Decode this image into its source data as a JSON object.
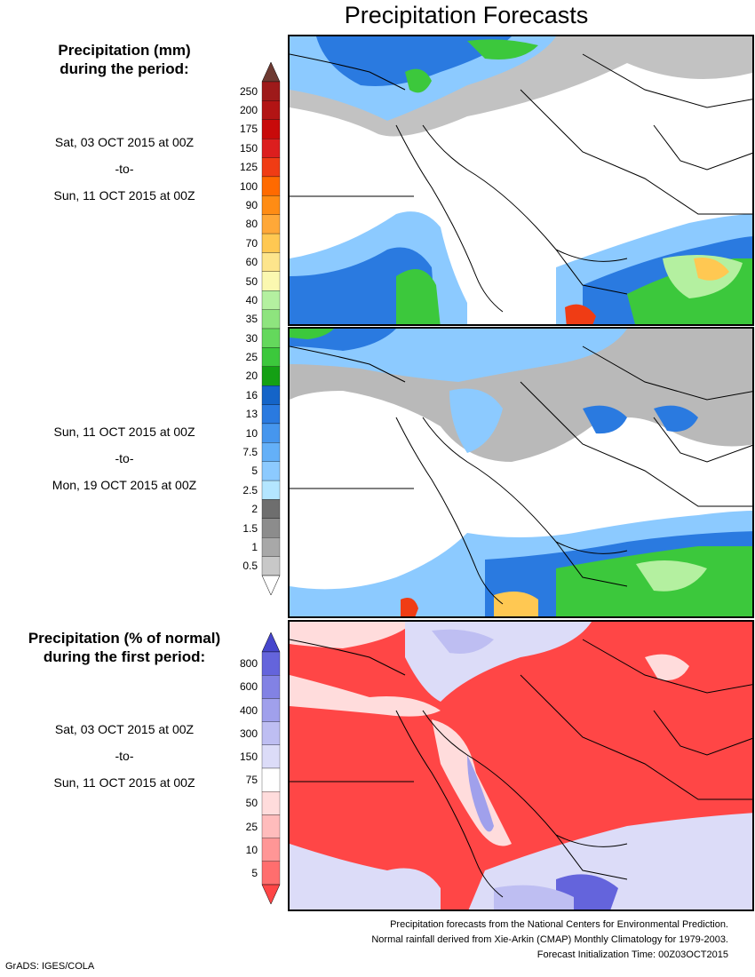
{
  "title": "Precipitation Forecasts",
  "mm_heading": [
    "Precipitation (mm)",
    "during the period:"
  ],
  "pct_heading": [
    "Precipitation (% of normal)",
    "during the first period:"
  ],
  "period1": {
    "start": "Sat, 03 OCT 2015 at 00Z",
    "sep": "-to-",
    "end": "Sun, 11 OCT 2015 at 00Z"
  },
  "period2": {
    "start": "Sun, 11 OCT 2015 at 00Z",
    "sep": "-to-",
    "end": "Mon, 19 OCT 2015 at 00Z"
  },
  "period3": {
    "start": "Sat, 03 OCT 2015 at 00Z",
    "sep": "-to-",
    "end": "Sun, 11 OCT 2015 at 00Z"
  },
  "mm_legend": {
    "labels": [
      "250",
      "200",
      "175",
      "150",
      "125",
      "100",
      "90",
      "80",
      "70",
      "60",
      "50",
      "40",
      "35",
      "30",
      "25",
      "20",
      "16",
      "13",
      "10",
      "7.5",
      "5",
      "2.5",
      "2",
      "1.5",
      "1",
      "0.5"
    ],
    "colors": [
      "#9e1a1a",
      "#b21414",
      "#c80a0a",
      "#dc1e1e",
      "#f03c14",
      "#ff6a00",
      "#ff8c14",
      "#ffa838",
      "#ffc852",
      "#fde58c",
      "#fbf8b0",
      "#b4f0a0",
      "#8ee47e",
      "#64d85c",
      "#3cc83c",
      "#14a014",
      "#1464c8",
      "#2a7ae0",
      "#4696ee",
      "#64b0f8",
      "#8ccaff",
      "#b4e6ff",
      "#6e6e6e",
      "#8c8c8c",
      "#a8a8a8",
      "#c8c8c8"
    ],
    "top_color": "#6e3a32"
  },
  "pct_legend": {
    "labels": [
      "800",
      "600",
      "400",
      "300",
      "150",
      "75",
      "50",
      "25",
      "10",
      "5"
    ],
    "colors": [
      "#6464dc",
      "#8282e4",
      "#a0a0ec",
      "#bebef2",
      "#dcdcf8",
      "#ffffff",
      "#ffdcdc",
      "#ffbcbc",
      "#ff9696",
      "#ff6e6e"
    ],
    "top_color": "#4646cc",
    "bottom_color": "#ff4646"
  },
  "footnotes": [
    "Precipitation forecasts from the National Centers for Environmental Prediction.",
    "Normal rainfall derived from Xie-Arkin (CMAP) Monthly Climatology for 1979-2003.",
    "Forecast Initialization Time: 00Z03OCT2015"
  ],
  "credit": "GrADS: IGES/COLA"
}
